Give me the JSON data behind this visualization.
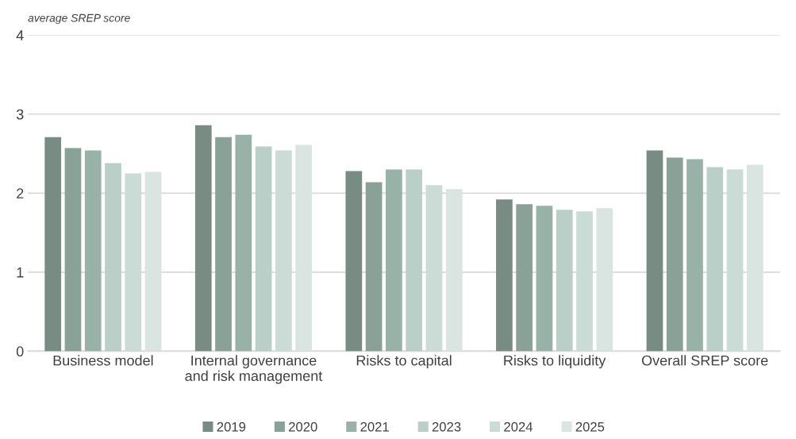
{
  "chart_data": {
    "type": "bar",
    "ylabel": "average SREP score",
    "categories": [
      "Business model",
      "Internal governance\nand risk management",
      "Risks to capital",
      "Risks to liquidity",
      "Overall SREP score"
    ],
    "series": [
      {
        "name": "2019",
        "color": "#788c83",
        "values": [
          2.71,
          2.86,
          2.28,
          1.92,
          2.54
        ]
      },
      {
        "name": "2020",
        "color": "#89a197",
        "values": [
          2.57,
          2.71,
          2.14,
          1.86,
          2.45
        ]
      },
      {
        "name": "2021",
        "color": "#98b2a8",
        "values": [
          2.54,
          2.74,
          2.3,
          1.84,
          2.43
        ]
      },
      {
        "name": "2023",
        "color": "#bacfc7",
        "values": [
          2.38,
          2.59,
          2.3,
          1.79,
          2.33
        ]
      },
      {
        "name": "2024",
        "color": "#cbdbd5",
        "values": [
          2.25,
          2.54,
          2.1,
          1.77,
          2.3
        ]
      },
      {
        "name": "2025",
        "color": "#dae4e0",
        "values": [
          2.27,
          2.61,
          2.05,
          1.81,
          2.36
        ]
      }
    ],
    "ylim": [
      0,
      4
    ],
    "yticks": [
      0,
      1,
      2,
      3,
      4
    ],
    "grid": "y",
    "legend": "bottom"
  }
}
